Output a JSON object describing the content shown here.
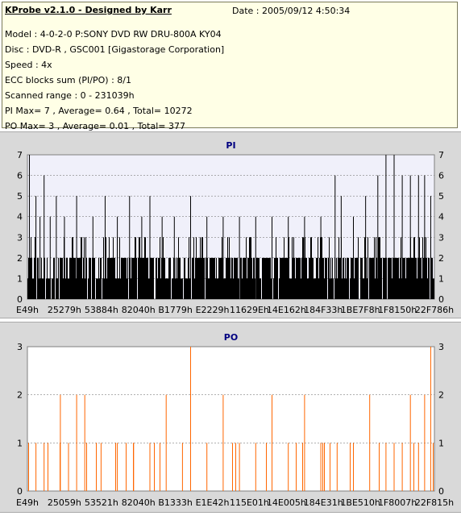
{
  "header": {
    "title": "KProbe v2.1.0 - Designed by Karr",
    "date": "Date : 2005/09/12 4:50:34",
    "lines": [
      "Model : 4-0-2-0 P:SONY    DVD RW DRU-800A  KY04",
      "Disc : DVD-R , GSC001 [Gigastorage Corporation]",
      "Speed : 4x",
      "ECC blocks sum (PI/PO) : 8/1",
      "Scanned range : 0 - 231039h",
      "PI Max= 7 , Average= 0.64 , Total= 10272",
      "PO Max= 3 , Average= 0.01 , Total= 377"
    ]
  },
  "colors": {
    "pi_bars": "#000000",
    "po_bars": "#ff6600",
    "plot_bg_pi": "#f0f0fa",
    "plot_bg_po": "#ffffff",
    "title_color": "#000080",
    "grid": "#808080"
  },
  "chart_data": [
    {
      "type": "bar",
      "title": "PI",
      "ylim": [
        0,
        7
      ],
      "yticks": [
        0,
        1,
        2,
        3,
        4,
        5,
        6,
        7
      ],
      "xtick_labels": [
        "E49h",
        "25279h",
        "53884h",
        "82040h",
        "B1779h",
        "E2229h",
        "11629Eh",
        "14E162h",
        "184F33h",
        "1BE7F8h",
        "1F8150h",
        "22F786h"
      ],
      "grid": true,
      "spikes": [
        {
          "x": 0.004,
          "v": 7
        },
        {
          "x": 0.02,
          "v": 5
        },
        {
          "x": 0.03,
          "v": 4
        },
        {
          "x": 0.04,
          "v": 6
        },
        {
          "x": 0.055,
          "v": 4
        },
        {
          "x": 0.07,
          "v": 5
        },
        {
          "x": 0.09,
          "v": 4
        },
        {
          "x": 0.12,
          "v": 5
        },
        {
          "x": 0.16,
          "v": 4
        },
        {
          "x": 0.19,
          "v": 5
        },
        {
          "x": 0.22,
          "v": 4
        },
        {
          "x": 0.25,
          "v": 5
        },
        {
          "x": 0.28,
          "v": 4
        },
        {
          "x": 0.3,
          "v": 5
        },
        {
          "x": 0.33,
          "v": 4
        },
        {
          "x": 0.36,
          "v": 4
        },
        {
          "x": 0.4,
          "v": 5
        },
        {
          "x": 0.44,
          "v": 4
        },
        {
          "x": 0.48,
          "v": 4
        },
        {
          "x": 0.52,
          "v": 4
        },
        {
          "x": 0.56,
          "v": 4
        },
        {
          "x": 0.6,
          "v": 4
        },
        {
          "x": 0.64,
          "v": 4
        },
        {
          "x": 0.68,
          "v": 4
        },
        {
          "x": 0.72,
          "v": 4
        },
        {
          "x": 0.755,
          "v": 6
        },
        {
          "x": 0.77,
          "v": 5
        },
        {
          "x": 0.8,
          "v": 4
        },
        {
          "x": 0.83,
          "v": 5
        },
        {
          "x": 0.86,
          "v": 6
        },
        {
          "x": 0.88,
          "v": 7
        },
        {
          "x": 0.9,
          "v": 7
        },
        {
          "x": 0.92,
          "v": 6
        },
        {
          "x": 0.94,
          "v": 6
        },
        {
          "x": 0.96,
          "v": 6
        },
        {
          "x": 0.975,
          "v": 6
        },
        {
          "x": 0.99,
          "v": 5
        }
      ],
      "baseline_level": 2
    },
    {
      "type": "bar",
      "title": "PO",
      "ylim": [
        0,
        3
      ],
      "yticks": [
        0,
        1,
        2,
        3
      ],
      "xtick_labels": [
        "E49h",
        "25059h",
        "53521h",
        "82040h",
        "B1333h",
        "E1E42h",
        "115E01h",
        "14E005h",
        "184E31h",
        "1BE510h",
        "1F8007h",
        "22F815h"
      ],
      "grid": true,
      "spikes": [
        {
          "x": 0.02,
          "v": 1
        },
        {
          "x": 0.04,
          "v": 1
        },
        {
          "x": 0.08,
          "v": 2
        },
        {
          "x": 0.1,
          "v": 1
        },
        {
          "x": 0.12,
          "v": 2
        },
        {
          "x": 0.14,
          "v": 2
        },
        {
          "x": 0.18,
          "v": 1
        },
        {
          "x": 0.22,
          "v": 1
        },
        {
          "x": 0.26,
          "v": 1
        },
        {
          "x": 0.3,
          "v": 1
        },
        {
          "x": 0.34,
          "v": 2
        },
        {
          "x": 0.38,
          "v": 1
        },
        {
          "x": 0.4,
          "v": 3
        },
        {
          "x": 0.44,
          "v": 1
        },
        {
          "x": 0.48,
          "v": 2
        },
        {
          "x": 0.52,
          "v": 1
        },
        {
          "x": 0.56,
          "v": 1
        },
        {
          "x": 0.6,
          "v": 2
        },
        {
          "x": 0.64,
          "v": 1
        },
        {
          "x": 0.68,
          "v": 2
        },
        {
          "x": 0.72,
          "v": 1
        },
        {
          "x": 0.76,
          "v": 1
        },
        {
          "x": 0.8,
          "v": 1
        },
        {
          "x": 0.84,
          "v": 2
        },
        {
          "x": 0.88,
          "v": 1
        },
        {
          "x": 0.9,
          "v": 1
        },
        {
          "x": 0.92,
          "v": 1
        },
        {
          "x": 0.94,
          "v": 2
        },
        {
          "x": 0.96,
          "v": 1
        },
        {
          "x": 0.975,
          "v": 2
        },
        {
          "x": 0.99,
          "v": 3
        }
      ],
      "baseline_level": 0
    }
  ]
}
